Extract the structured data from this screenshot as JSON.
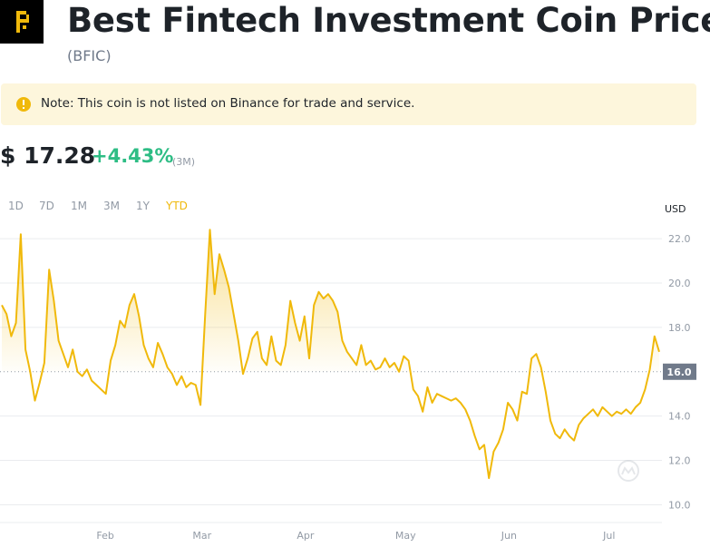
{
  "header": {
    "title": "Best Fintech Investment Coin Price",
    "symbol": "(BFIC)"
  },
  "note": {
    "text": "Note: This coin is not listed on Binance for trade and service."
  },
  "price": {
    "value": "$ 17.28",
    "change": "+4.43%",
    "period": "(3M)"
  },
  "timeframes": [
    {
      "label": "1D",
      "active": false
    },
    {
      "label": "7D",
      "active": false
    },
    {
      "label": "1M",
      "active": false
    },
    {
      "label": "3M",
      "active": false
    },
    {
      "label": "1Y",
      "active": false
    },
    {
      "label": "YTD",
      "active": true
    }
  ],
  "colors": {
    "accent": "#f0b90b",
    "positive": "#2ebd85",
    "current_label_bg": "#707a8a"
  },
  "chart_data": {
    "type": "area",
    "unit_label": "USD",
    "x_tick_labels": [
      "Feb",
      "Mar",
      "Apr",
      "May",
      "Jun",
      "Jul"
    ],
    "y_ticks": [
      10.0,
      12.0,
      14.0,
      16.0,
      18.0,
      20.0,
      22.0
    ],
    "y_tick_labels": [
      "10.0",
      "12.0",
      "14.0",
      "16.0",
      "18.0",
      "20.0",
      "22.0"
    ],
    "ylim": [
      9.2,
      22.7
    ],
    "current_value_label": "16.0",
    "baseline": 16.0,
    "grid": true,
    "x_start": "2024-01-01",
    "x_end": "2024-07-16",
    "month_ticks": [
      "2024-02-01",
      "2024-03-01",
      "2024-04-01",
      "2024-05-01",
      "2024-06-01",
      "2024-07-01"
    ],
    "series": [
      {
        "values": [
          19.0,
          18.6,
          17.6,
          18.2,
          22.2,
          17.0,
          16.0,
          14.7,
          15.5,
          16.4,
          20.6,
          19.2,
          17.4,
          16.8,
          16.2,
          17.0,
          16.0,
          15.8,
          16.1,
          15.6,
          15.4,
          15.2,
          15.0,
          16.5,
          17.2,
          18.3,
          18.0,
          19.0,
          19.5,
          18.5,
          17.2,
          16.6,
          16.2,
          17.3,
          16.8,
          16.2,
          15.9,
          15.4,
          15.8,
          15.3,
          15.5,
          15.4,
          14.5,
          18.6,
          22.4,
          19.5,
          21.3,
          20.6,
          19.8,
          18.6,
          17.4,
          15.9,
          16.6,
          17.5,
          17.8,
          16.6,
          16.3,
          17.6,
          16.5,
          16.3,
          17.2,
          19.2,
          18.2,
          17.4,
          18.5,
          16.6,
          19.0,
          19.6,
          19.3,
          19.5,
          19.2,
          18.7,
          17.4,
          16.9,
          16.6,
          16.3,
          17.2,
          16.3,
          16.5,
          16.1,
          16.2,
          16.6,
          16.2,
          16.4,
          16.0,
          16.7,
          16.5,
          15.2,
          14.9,
          14.2,
          15.3,
          14.6,
          15.0,
          14.9,
          14.8,
          14.7,
          14.8,
          14.6,
          14.3,
          13.8,
          13.1,
          12.5,
          12.7,
          11.2,
          12.4,
          12.8,
          13.4,
          14.6,
          14.3,
          13.8,
          15.1,
          15.0,
          16.6,
          16.8,
          16.2,
          15.1,
          13.8,
          13.2,
          13.0,
          13.4,
          13.1,
          12.9,
          13.6,
          13.9,
          14.1,
          14.3,
          14.0,
          14.4,
          14.2,
          14.0,
          14.2,
          14.1,
          14.3,
          14.1,
          14.4,
          14.6,
          15.2,
          16.1,
          17.6,
          16.9
        ]
      }
    ]
  }
}
